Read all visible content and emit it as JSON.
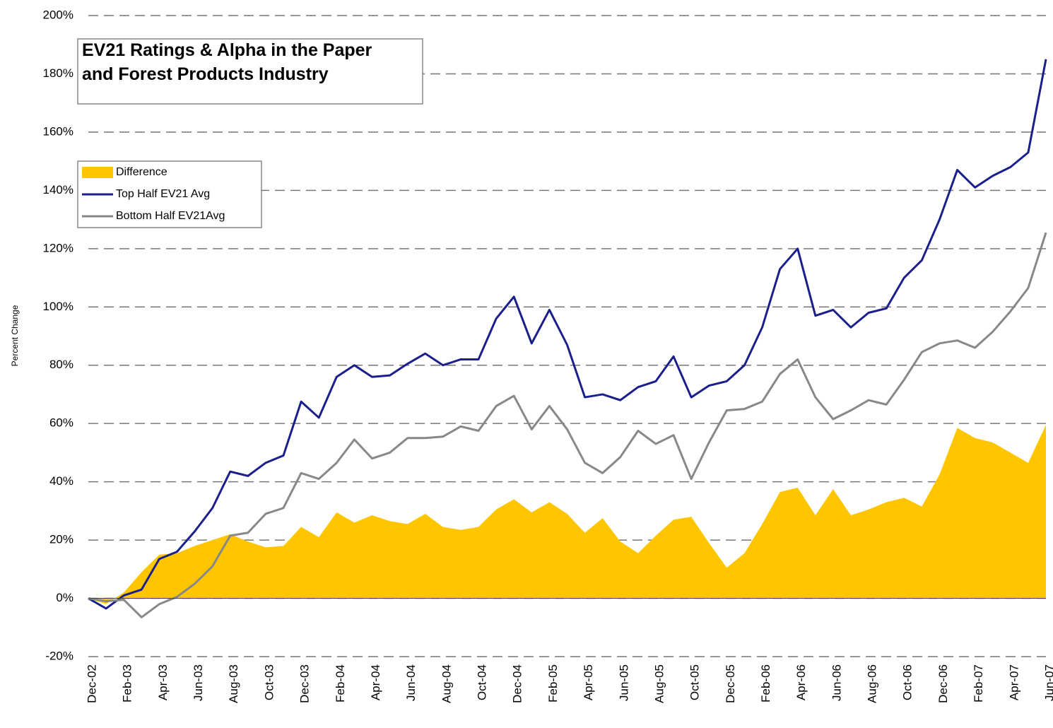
{
  "chart_data": {
    "type": "line",
    "title": "EV21 Ratings & Alpha in the Paper and Forest Products Industry",
    "y_label": "Percent Change",
    "categories": [
      "Dec-02",
      null,
      "Feb-03",
      null,
      "Apr-03",
      null,
      "Jun-03",
      null,
      "Aug-03",
      null,
      "Oct-03",
      null,
      "Dec-03",
      null,
      "Feb-04",
      null,
      "Apr-04",
      null,
      "Jun-04",
      null,
      "Aug-04",
      null,
      "Oct-04",
      null,
      "Dec-04",
      null,
      "Feb-05",
      null,
      "Apr-05",
      null,
      "Jun-05",
      null,
      "Aug-05",
      null,
      "Oct-05",
      null,
      "Dec-05",
      null,
      "Feb-06",
      null,
      "Apr-06",
      null,
      "Jun-06",
      null,
      "Aug-06",
      null,
      "Oct-06",
      null,
      "Dec-06",
      null,
      "Feb-07",
      null,
      "Apr-07",
      null,
      "Jun-07"
    ],
    "series": [
      {
        "name": "Difference",
        "kind": "area",
        "color": "#ffc600",
        "values": [
          0,
          -2,
          2,
          9,
          15,
          15.5,
          18,
          20,
          22,
          19.5,
          17.5,
          18,
          24.5,
          21,
          29.5,
          26,
          28.5,
          26.5,
          25.5,
          29,
          24.5,
          23.5,
          24.5,
          30.5,
          34,
          29.5,
          33,
          29,
          22.5,
          27.5,
          19.5,
          15.5,
          21.5,
          27,
          28,
          19,
          10.5,
          15.5,
          25.5,
          36.5,
          38,
          28.5,
          37.5,
          28.5,
          30.5,
          33,
          34.5,
          31.5,
          42.5,
          58.5,
          55,
          53.5,
          50,
          46.5,
          59.5
        ]
      },
      {
        "name": "Top Half EV21 Avg",
        "kind": "line",
        "color": "#1a1f8c",
        "values": [
          0,
          -3.5,
          1,
          3,
          13.5,
          16,
          23,
          31,
          43.5,
          42,
          46.5,
          49,
          67.5,
          62,
          76,
          80,
          76,
          76.5,
          80.5,
          84,
          80,
          82,
          82,
          96,
          103.5,
          87.5,
          99,
          87,
          69,
          70,
          68,
          72.5,
          74.5,
          83,
          69,
          73,
          74.5,
          80,
          93,
          113,
          120,
          97,
          99,
          93,
          98,
          99.5,
          110,
          116,
          130,
          147,
          141,
          145,
          148,
          153,
          185
        ]
      },
      {
        "name": "Bottom Half EV21Avg",
        "kind": "line",
        "color": "#888888",
        "values": [
          0,
          -1,
          -0.5,
          -6.5,
          -2,
          0.5,
          5,
          11,
          21.5,
          22.5,
          29,
          31,
          43,
          41,
          46.5,
          54.5,
          48,
          50,
          55,
          55,
          55.5,
          59,
          57.5,
          66,
          69.5,
          58,
          66,
          58,
          46.5,
          43,
          48.5,
          57.5,
          53,
          56,
          41,
          53.5,
          64.5,
          65,
          67.5,
          77,
          82,
          69,
          61.5,
          64.5,
          68,
          66.5,
          75,
          84.5,
          87.5,
          88.5,
          86,
          91.5,
          98.5,
          106.5,
          125.5
        ]
      }
    ],
    "ylim": [
      -20,
      200
    ],
    "yticks": [
      {
        "value": -20,
        "label": "-20%"
      },
      {
        "value": 0,
        "label": "0%"
      },
      {
        "value": 20,
        "label": "20%"
      },
      {
        "value": 40,
        "label": "40%"
      },
      {
        "value": 60,
        "label": "60%"
      },
      {
        "value": 80,
        "label": "80%"
      },
      {
        "value": 100,
        "label": "100%"
      },
      {
        "value": 120,
        "label": "120%"
      },
      {
        "value": 140,
        "label": "140%"
      },
      {
        "value": 160,
        "label": "160%"
      },
      {
        "value": 180,
        "label": "180%"
      },
      {
        "value": 200,
        "label": "200%"
      }
    ],
    "grid": true,
    "legend": "upper left"
  }
}
